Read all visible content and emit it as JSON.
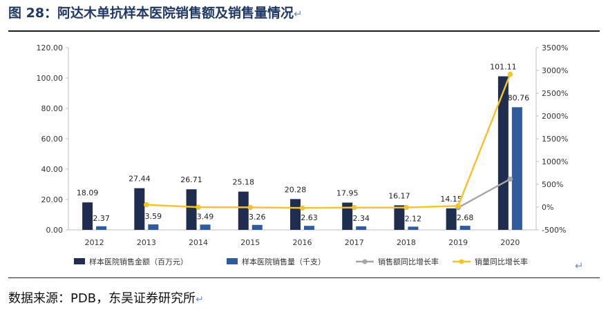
{
  "figure": {
    "title": "图 28：阿达木单抗样本医院销售额及销售量情况",
    "return_mark": "↵",
    "source": "数据来源：PDB，东吴证券研究所"
  },
  "colors": {
    "sales_amount": "#1f2d4e",
    "sales_volume": "#2e5c9c",
    "amount_yoy": "#a6a6a6",
    "volume_yoy": "#f4c42a",
    "title": "#1f3864"
  },
  "chart_data": {
    "type": "bar",
    "categories": [
      "2012",
      "2013",
      "2014",
      "2015",
      "2016",
      "2017",
      "2018",
      "2019",
      "2020"
    ],
    "series": [
      {
        "name": "样本医院销售金额（百万元）",
        "kind": "bar",
        "axis": "left",
        "values": [
          18.09,
          27.44,
          26.71,
          25.18,
          20.28,
          17.95,
          16.17,
          14.15,
          101.11
        ],
        "labels": [
          "18.09",
          "27.44",
          "26.71",
          "25.18",
          "20.28",
          "17.95",
          "16.17",
          "14.15",
          "101.11"
        ]
      },
      {
        "name": "样本医院销售量（千支）",
        "kind": "bar",
        "axis": "left",
        "values": [
          2.37,
          3.59,
          3.49,
          3.26,
          2.63,
          2.34,
          2.12,
          2.68,
          80.76
        ],
        "labels": [
          "2.37",
          "3.59",
          "3.49",
          "3.26",
          "2.63",
          "2.34",
          "2.12",
          "2.68",
          "80.76"
        ]
      },
      {
        "name": "销售额同比增长率",
        "kind": "line",
        "axis": "right",
        "values": [
          null,
          null,
          null,
          null,
          null,
          null,
          null,
          -12.5,
          614.5
        ]
      },
      {
        "name": "销量同比增长率",
        "kind": "line",
        "axis": "right",
        "values": [
          null,
          51.5,
          -2.8,
          -6.6,
          -19.3,
          -11.0,
          -9.4,
          26.4,
          2913.4
        ]
      }
    ],
    "left_axis": {
      "min": 0,
      "max": 120,
      "ticks": [
        "0.00",
        "20.00",
        "40.00",
        "60.00",
        "80.00",
        "100.00",
        "120.00"
      ]
    },
    "right_axis": {
      "min": -500,
      "max": 3500,
      "ticks": [
        "-500%",
        "0%",
        "500%",
        "1000%",
        "1500%",
        "2000%",
        "2500%",
        "3000%",
        "3500%"
      ]
    },
    "grid": false,
    "legend_position": "bottom"
  }
}
